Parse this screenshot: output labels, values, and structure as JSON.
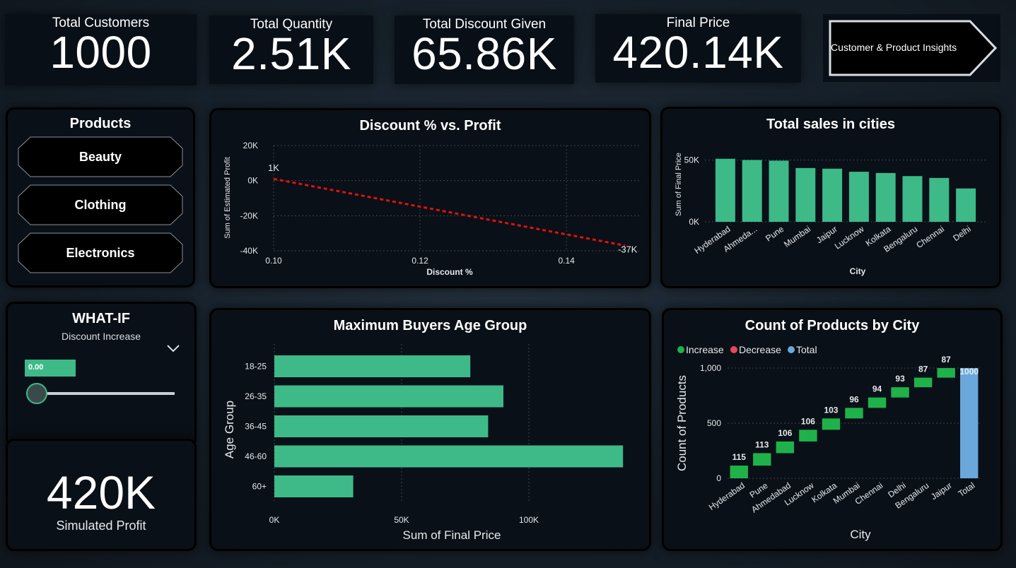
{
  "kpis": [
    {
      "label": "Total Customers",
      "value": "1000"
    },
    {
      "label": "Total Quantity",
      "value": "2.51K"
    },
    {
      "label": "Total Discount Given",
      "value": "65.86K"
    },
    {
      "label": "Final Price",
      "value": "420.14K"
    }
  ],
  "nav": {
    "label": "Customer & Product Insights"
  },
  "products": {
    "title": "Products",
    "items": [
      "Beauty",
      "Clothing",
      "Electronics"
    ]
  },
  "whatif": {
    "title": "WHAT-IF",
    "param_label": "Discount Increase",
    "value": "0.00",
    "slider_value": 0,
    "result_value": "420K",
    "result_label": "Simulated Profit"
  },
  "colors": {
    "bar": "#3dba88",
    "trend": "#e01010",
    "increase": "#1fb24a",
    "decrease": "#e5485d",
    "total": "#6aa8dc"
  },
  "chart_data": [
    {
      "type": "line",
      "title": "Discount % vs. Profit",
      "xlabel": "Discount %",
      "ylabel": "Sum of Estimated Profit",
      "x": [
        0.1,
        0.148
      ],
      "y": [
        1000,
        -37000
      ],
      "point_labels": [
        "1K",
        "-37K"
      ],
      "xticks": [
        "0.10",
        "0.12",
        "0.14"
      ],
      "yticks": [
        "20K",
        "0K",
        "-20K",
        "-40K"
      ],
      "xlim": [
        0.1,
        0.148
      ],
      "ylim": [
        -40000,
        20000
      ],
      "grid": true
    },
    {
      "type": "bar",
      "title": "Total sales in cities",
      "xlabel": "City",
      "ylabel": "Sum of Final Price",
      "categories": [
        "Hyderabad",
        "Ahmeda...",
        "Pune",
        "Mumbai",
        "Jaipur",
        "Lucknow",
        "Kolkata",
        "Bengaluru",
        "Chennai",
        "Delhi"
      ],
      "values": [
        51000,
        50000,
        49500,
        43500,
        43000,
        40500,
        39500,
        37000,
        35500,
        27000
      ],
      "yticks": [
        "0K",
        "50K"
      ],
      "ylim": [
        0,
        60000
      ],
      "grid": true
    },
    {
      "type": "bar",
      "orientation": "horizontal",
      "title": "Maximum Buyers Age Group",
      "xlabel": "Sum of Final Price",
      "ylabel": "Age Group",
      "categories": [
        "18-25",
        "26-35",
        "36-45",
        "46-60",
        "60+"
      ],
      "values": [
        77000,
        90000,
        84000,
        137000,
        31000
      ],
      "xticks": [
        "0K",
        "50K",
        "100K"
      ],
      "xlim": [
        0,
        140000
      ],
      "grid": true
    },
    {
      "type": "waterfall",
      "title": "Count of Products by City",
      "xlabel": "City",
      "ylabel": "Count of Products",
      "legend": [
        "Increase",
        "Decrease",
        "Total"
      ],
      "legend_position": "top-left",
      "categories": [
        "Hyderabad",
        "Pune",
        "Ahmedabad",
        "Lucknow",
        "Kolkata",
        "Mumbai",
        "Chennai",
        "Delhi",
        "Bengaluru",
        "Jaipur",
        "Total"
      ],
      "values": [
        115,
        113,
        106,
        106,
        103,
        96,
        94,
        93,
        87,
        87,
        1000
      ],
      "labels": [
        "115",
        "113",
        "106",
        "106",
        "103",
        "96",
        "94",
        "93",
        "87",
        "87",
        "1000"
      ],
      "yticks": [
        "1,000",
        "500",
        "0"
      ],
      "ylim": [
        0,
        1000
      ],
      "grid": true
    }
  ]
}
